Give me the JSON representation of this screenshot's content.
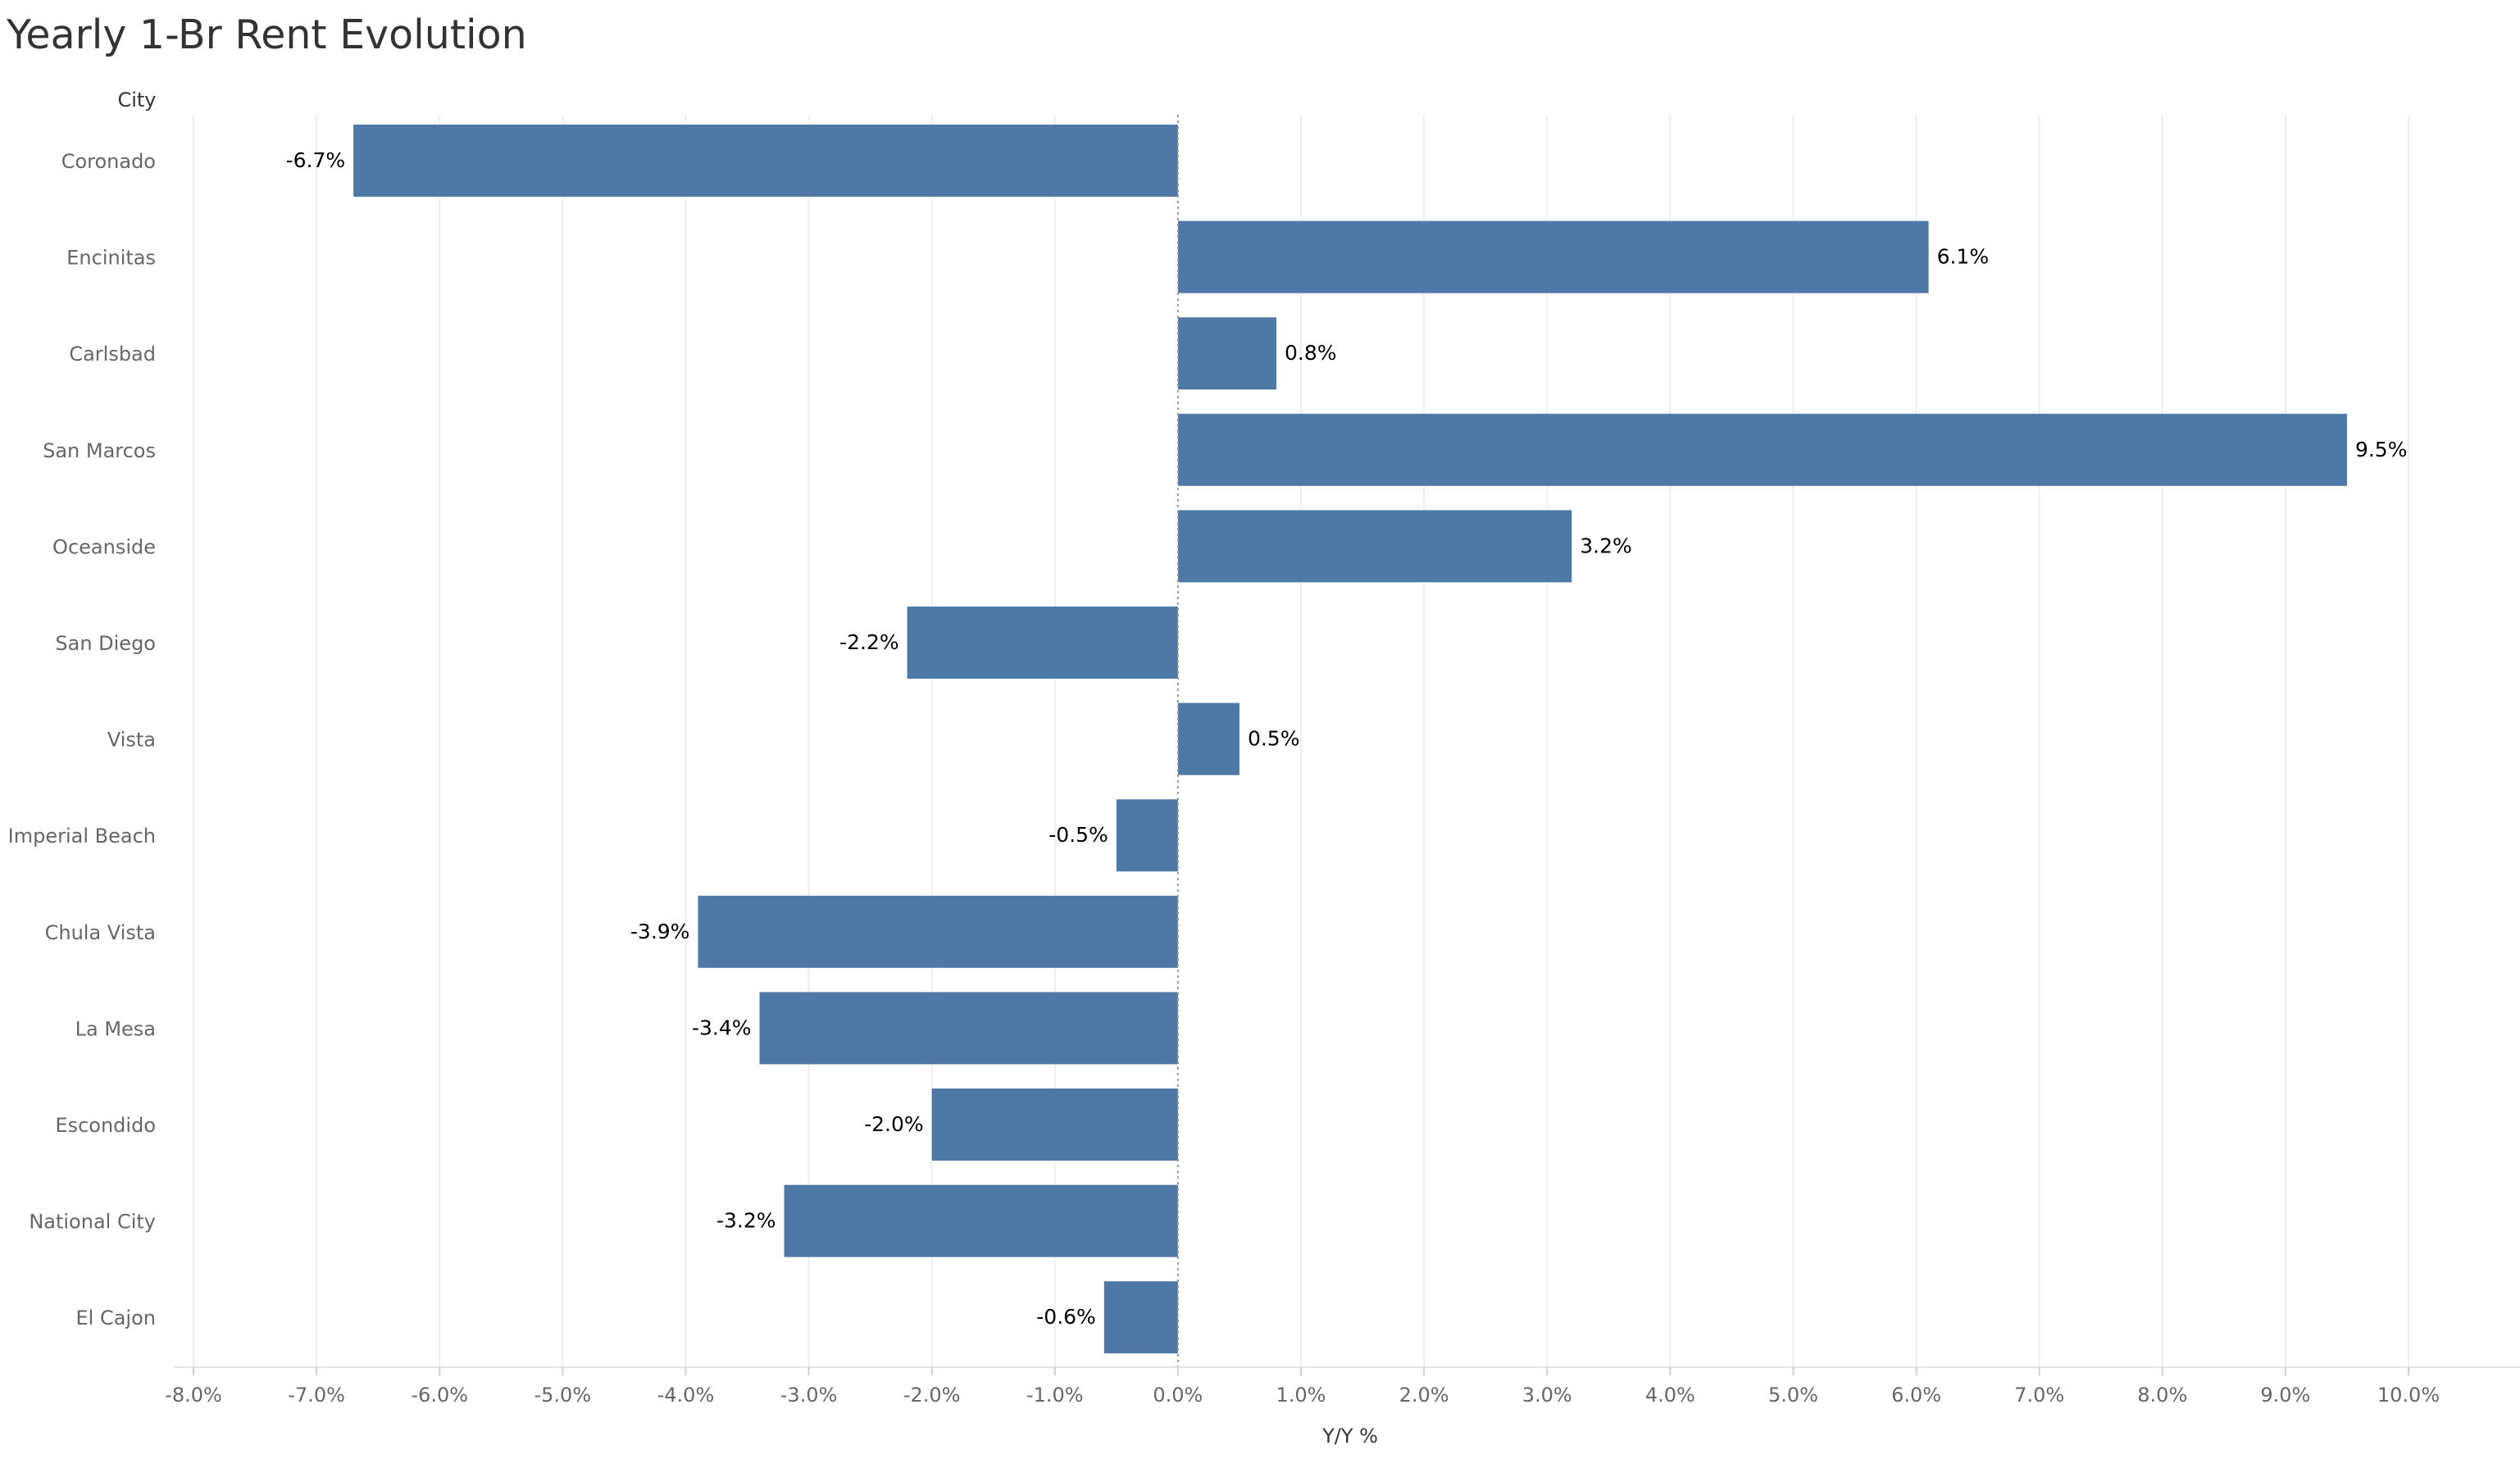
{
  "chart_data": {
    "type": "bar",
    "orientation": "horizontal",
    "title": "Yearly 1-Br Rent Evolution",
    "category_header": "City",
    "xlabel": "Y/Y %",
    "categories": [
      "Coronado",
      "Encinitas",
      "Carlsbad",
      "San Marcos",
      "Oceanside",
      "San Diego",
      "Vista",
      "Imperial Beach",
      "Chula Vista",
      "La Mesa",
      "Escondido",
      "National City",
      "El Cajon"
    ],
    "values": [
      -6.7,
      6.1,
      0.8,
      9.5,
      3.2,
      -2.2,
      0.5,
      -0.5,
      -3.9,
      -3.4,
      -2.0,
      -3.2,
      -0.6
    ],
    "data_labels": [
      "-6.7%",
      "6.1%",
      "0.8%",
      "9.5%",
      "3.2%",
      "-2.2%",
      "0.5%",
      "-0.5%",
      "-3.9%",
      "-3.4%",
      "-2.0%",
      "-3.2%",
      "-0.6%"
    ],
    "xlim": [
      -8,
      10
    ],
    "xticks": [
      -8,
      -7,
      -6,
      -5,
      -4,
      -3,
      -2,
      -1,
      0,
      1,
      2,
      3,
      4,
      5,
      6,
      7,
      8,
      9,
      10
    ],
    "xtick_labels": [
      "-8.0%",
      "-7.0%",
      "-6.0%",
      "-5.0%",
      "-4.0%",
      "-3.0%",
      "-2.0%",
      "-1.0%",
      "0.0%",
      "1.0%",
      "2.0%",
      "3.0%",
      "4.0%",
      "5.0%",
      "6.0%",
      "7.0%",
      "8.0%",
      "9.0%",
      "10.0%"
    ],
    "grid": true,
    "legend": "none",
    "bar_color": "#4e79a7"
  }
}
